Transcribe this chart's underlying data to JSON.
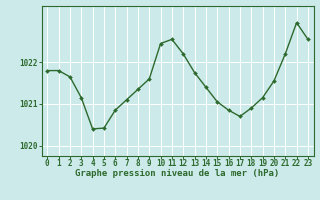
{
  "x": [
    0,
    1,
    2,
    3,
    4,
    5,
    6,
    7,
    8,
    9,
    10,
    11,
    12,
    13,
    14,
    15,
    16,
    17,
    18,
    19,
    20,
    21,
    22,
    23
  ],
  "y": [
    1021.8,
    1021.8,
    1021.65,
    1021.15,
    1020.4,
    1020.42,
    1020.85,
    1021.1,
    1021.35,
    1021.6,
    1022.45,
    1022.55,
    1022.2,
    1021.75,
    1021.4,
    1021.05,
    1020.85,
    1020.7,
    1020.9,
    1021.15,
    1021.55,
    1022.2,
    1022.95,
    1022.55
  ],
  "line_color": "#2d6a2d",
  "marker": "D",
  "marker_size": 2.0,
  "line_width": 1.0,
  "bg_color": "#cceaea",
  "grid_color": "#ffffff",
  "ylabel_ticks": [
    1020,
    1021,
    1022
  ],
  "ylim": [
    1019.75,
    1023.35
  ],
  "xlim": [
    -0.5,
    23.5
  ],
  "xlabel": "Graphe pression niveau de la mer (hPa)",
  "xlabel_color": "#2d6a2d",
  "xlabel_fontsize": 6.5,
  "tick_fontsize": 5.5,
  "tick_color": "#2d6a2d",
  "spine_color": "#2d6a2d"
}
